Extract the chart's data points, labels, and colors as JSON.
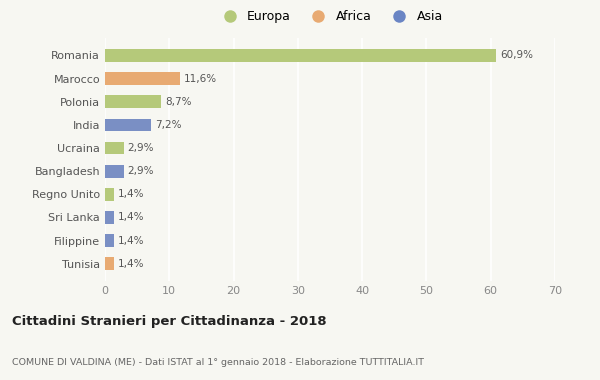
{
  "categories": [
    "Romania",
    "Marocco",
    "Polonia",
    "India",
    "Ucraina",
    "Bangladesh",
    "Regno Unito",
    "Sri Lanka",
    "Filippine",
    "Tunisia"
  ],
  "values": [
    60.9,
    11.6,
    8.7,
    7.2,
    2.9,
    2.9,
    1.4,
    1.4,
    1.4,
    1.4
  ],
  "colors": [
    "#b5c97a",
    "#e8aa72",
    "#b5c97a",
    "#7a8fc4",
    "#b5c97a",
    "#7a8fc4",
    "#b5c97a",
    "#7a8fc4",
    "#7a8fc4",
    "#e8aa72"
  ],
  "labels": [
    "60,9%",
    "11,6%",
    "8,7%",
    "7,2%",
    "2,9%",
    "2,9%",
    "1,4%",
    "1,4%",
    "1,4%",
    "1,4%"
  ],
  "legend": [
    {
      "label": "Europa",
      "color": "#b5c97a"
    },
    {
      "label": "Africa",
      "color": "#e8aa72"
    },
    {
      "label": "Asia",
      "color": "#6a85c4"
    }
  ],
  "xlim": [
    0,
    70
  ],
  "xticks": [
    0,
    10,
    20,
    30,
    40,
    50,
    60,
    70
  ],
  "title": "Cittadini Stranieri per Cittadinanza - 2018",
  "subtitle": "COMUNE DI VALDINA (ME) - Dati ISTAT al 1° gennaio 2018 - Elaborazione TUTTITALIA.IT",
  "background_color": "#f7f7f2",
  "grid_color": "#ffffff",
  "bar_height": 0.55
}
